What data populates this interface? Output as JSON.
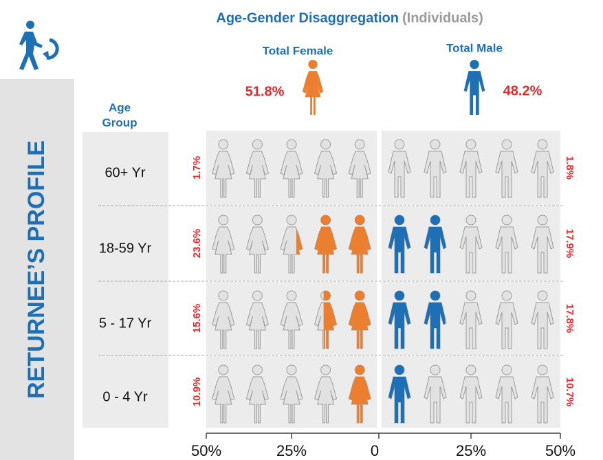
{
  "sidebar_title": "RETURNEE’S PROFILE",
  "chart_data": {
    "type": "pyramid",
    "title": "Age-Gender Disaggregation",
    "subtitle": "(Individuals)",
    "category_header": "Age Group",
    "categories": [
      "60+ Yr",
      "18-59 Yr",
      "5 - 17 Yr",
      "0 - 4 Yr"
    ],
    "series": [
      {
        "name": "Total Female",
        "color": "#ec7f2f",
        "total": 51.8,
        "total_label": "51.8%",
        "values": [
          1.7,
          23.6,
          15.6,
          10.9
        ],
        "value_labels": [
          "1.7%",
          "23.6%",
          "15.6%",
          "10.9%"
        ]
      },
      {
        "name": "Total Male",
        "color": "#1f6fb5",
        "total": 48.2,
        "total_label": "48.2%",
        "values": [
          1.8,
          17.9,
          17.8,
          10.7
        ],
        "value_labels": [
          "1.8%",
          "17.9%",
          "17.8%",
          "10.7%"
        ]
      }
    ],
    "xlim": [
      -50,
      50
    ],
    "xticks": [
      {
        "value": -50,
        "label": "50%"
      },
      {
        "value": -25,
        "label": "25%"
      },
      0,
      {
        "value": 25,
        "label": "25%"
      },
      {
        "value": 50,
        "label": "50%"
      }
    ]
  }
}
